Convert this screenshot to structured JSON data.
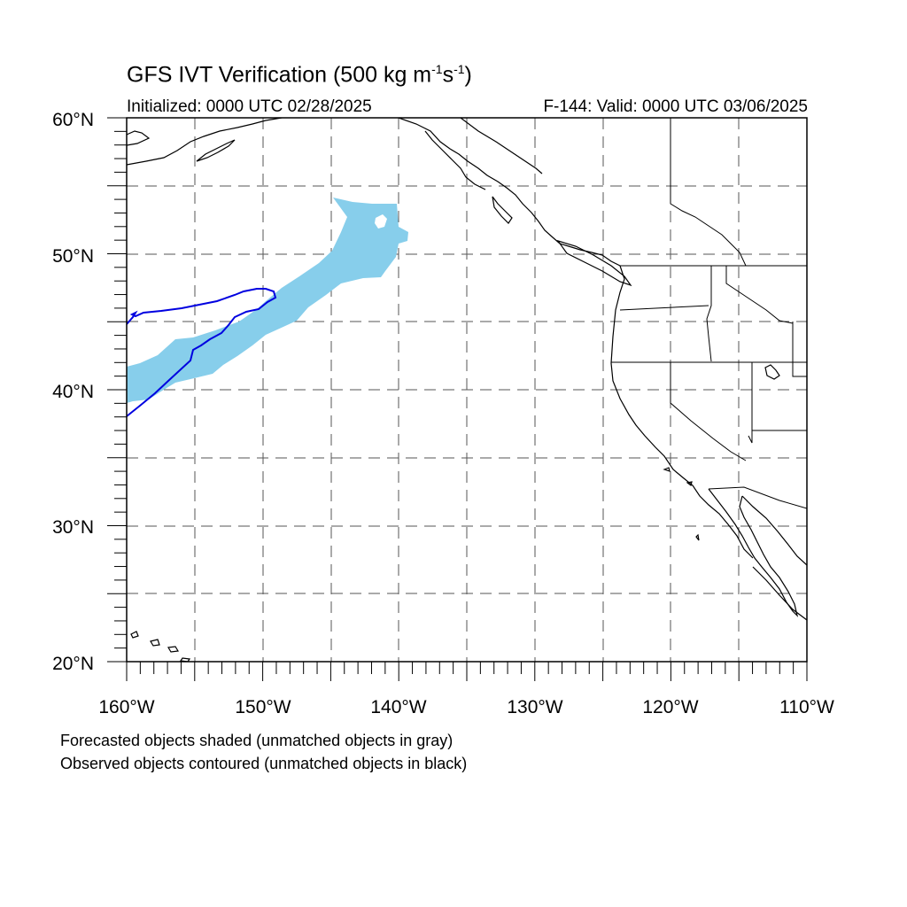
{
  "title": {
    "main_prefix": "GFS IVT Verification (500 kg m",
    "exp1": "-1",
    "mid": "s",
    "exp2": "-1",
    "suffix": ")"
  },
  "subtitle_left": "Initialized: 0000 UTC 02/28/2025",
  "subtitle_right": "F-144: Valid: 0000 UTC 03/06/2025",
  "lat_labels": [
    "60°N",
    "50°N",
    "40°N",
    "30°N",
    "20°N"
  ],
  "lon_labels": [
    "160°W",
    "150°W",
    "140°W",
    "130°W",
    "120°W",
    "110°W"
  ],
  "map_extent": {
    "lon": [
      -160,
      -110
    ],
    "lat": [
      20,
      60
    ]
  },
  "legend_lines": [
    "Forecasted objects shaded (unmatched objects in gray)",
    "Observed objects contoured (unmatched objects in black)"
  ],
  "colors": {
    "forecast_fill": "#87ceeb",
    "observed_contour": "#0000e0",
    "coastline": "#000000",
    "gridline": "#555555"
  }
}
